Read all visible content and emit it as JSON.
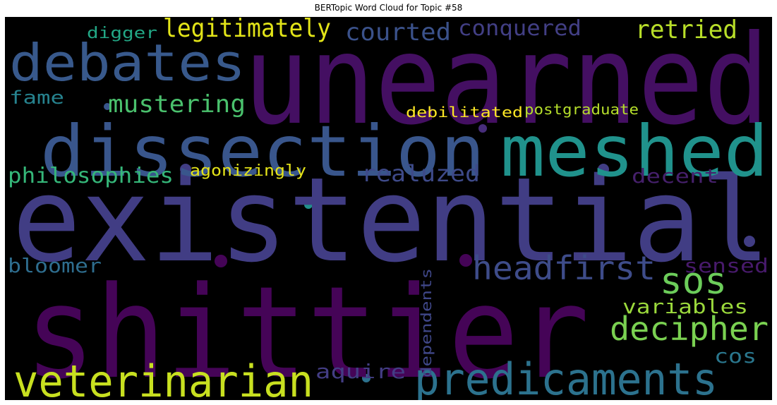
{
  "title": "BERTopic Word Cloud for Topic #58",
  "background": "#000000",
  "colormap": "viridis",
  "words": [
    {
      "text": "unearned",
      "color": "#440f62"
    },
    {
      "text": "existential",
      "color": "#413d84"
    },
    {
      "text": "shittier",
      "color": "#450457"
    },
    {
      "text": "dissection",
      "color": "#39568c"
    },
    {
      "text": "meshed",
      "color": "#20928c"
    },
    {
      "text": "debates",
      "color": "#38598c"
    },
    {
      "text": "predicaments",
      "color": "#2c728e"
    },
    {
      "text": "veterinarian",
      "color": "#c8e020"
    },
    {
      "text": "headfirst",
      "color": "#3e4c8a"
    },
    {
      "text": "decipher",
      "color": "#7ad151"
    },
    {
      "text": "sos",
      "color": "#6ccd5a"
    },
    {
      "text": "legitimately",
      "color": "#e2e418"
    },
    {
      "text": "retried",
      "color": "#b8de29"
    },
    {
      "text": "courted",
      "color": "#3b528b"
    },
    {
      "text": "conquered",
      "color": "#423f85"
    },
    {
      "text": "mustering",
      "color": "#4ac16d"
    },
    {
      "text": "philosophies",
      "color": "#35b779"
    },
    {
      "text": "realuzed",
      "color": "#3e4a89"
    },
    {
      "text": "decent",
      "color": "#46206c"
    },
    {
      "text": "variables",
      "color": "#9bd93c"
    },
    {
      "text": "bloomer",
      "color": "#2e6d8e"
    },
    {
      "text": "sensed",
      "color": "#481a6c"
    },
    {
      "text": "aquire",
      "color": "#433d84"
    },
    {
      "text": "cos",
      "color": "#2a778e"
    },
    {
      "text": "fame",
      "color": "#26828e"
    },
    {
      "text": "digger",
      "color": "#22a785"
    },
    {
      "text": "debilitated",
      "color": "#fde725"
    },
    {
      "text": "postgraduate",
      "color": "#b5de2b"
    },
    {
      "text": "agonizingly",
      "color": "#e5e419"
    },
    {
      "text": "dependents",
      "color": "#3f4788"
    }
  ]
}
